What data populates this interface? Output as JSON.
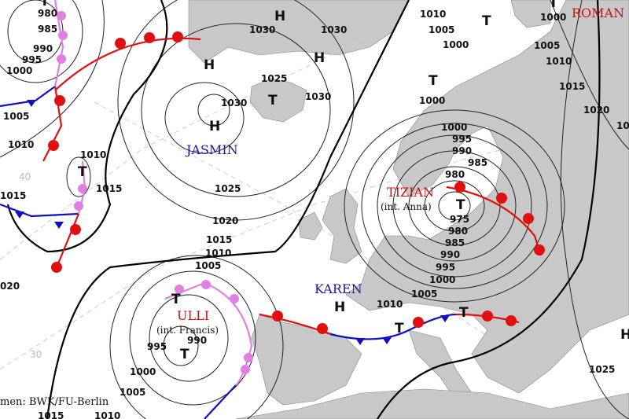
{
  "map": {
    "source": "men: BWK/FU-Berlin",
    "latitude_labels": [
      "40",
      "30"
    ],
    "isobar_labels": [
      "980",
      "985",
      "990",
      "995",
      "1000",
      "1005",
      "1010",
      "1010",
      "1015",
      "1015",
      "020",
      "1025",
      "1020",
      "1015",
      "1010",
      "1005",
      "1030",
      "1025",
      "1030",
      "1030",
      "1030",
      "1010",
      "1005",
      "1000",
      "1000",
      "1000",
      "995",
      "990",
      "985",
      "980",
      "975",
      "980",
      "985",
      "990",
      "995",
      "1000",
      "1005",
      "1010",
      "1000",
      "1005",
      "1010",
      "1015",
      "1020",
      "10",
      "1025",
      "995",
      "990",
      "1000",
      "1005",
      "1015",
      "1010"
    ],
    "pressure_centers": [
      "T",
      "H",
      "H",
      "H",
      "T",
      "H",
      "T",
      "T",
      "T",
      "T",
      "T",
      "T",
      "H",
      "T",
      "T",
      "T",
      "H"
    ],
    "systems": [
      {
        "name": "JASMIN",
        "type": "high",
        "color": "#1a1aaa"
      },
      {
        "name": "ROMAN",
        "type": "high",
        "color": "#cc1111"
      },
      {
        "name": "TIZIAN",
        "subtitle": "(int. Anna)",
        "type": "low",
        "color": "#cc1111"
      },
      {
        "name": "ULLI",
        "subtitle": "(int. Francis)",
        "type": "low",
        "color": "#cc1111"
      },
      {
        "name": "KAREN",
        "type": "high",
        "color": "#1a1aaa"
      }
    ],
    "colors": {
      "land": "#c8c8c8",
      "warm_front": "#e01010",
      "cold_front": "#1010c0",
      "occlusion": "#e080e0",
      "isobar": "#222222"
    }
  }
}
